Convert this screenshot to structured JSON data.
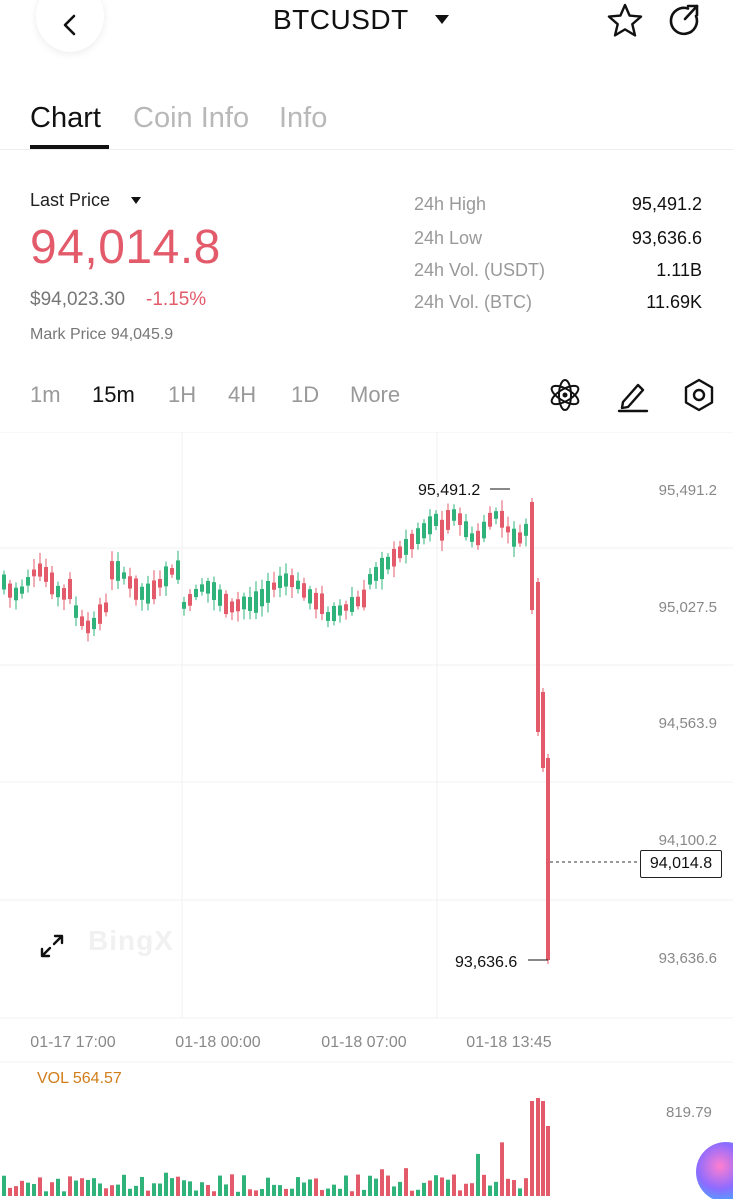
{
  "header": {
    "pair": "BTCUSDT",
    "icons": {
      "back": "back-chevron-icon",
      "caret": "caret-down-icon",
      "star": "star-icon",
      "share": "share-icon"
    }
  },
  "tabs": [
    {
      "label": "Chart",
      "active": true
    },
    {
      "label": "Coin Info",
      "active": false
    },
    {
      "label": "Info",
      "active": false
    }
  ],
  "price": {
    "label": "Last Price",
    "last": "94,014.8",
    "usd": "$94,023.30",
    "change": "-1.15%",
    "mark": "Mark Price 94,045.9"
  },
  "stats": [
    {
      "label": "24h High",
      "value": "95,491.2"
    },
    {
      "label": "24h Low",
      "value": "93,636.6"
    },
    {
      "label": "24h Vol. (USDT)",
      "value": "1.11B"
    },
    {
      "label": "24h Vol. (BTC)",
      "value": "11.69K"
    }
  ],
  "intervals": [
    {
      "label": "1m",
      "active": false
    },
    {
      "label": "15m",
      "active": true
    },
    {
      "label": "1H",
      "active": false
    },
    {
      "label": "4H",
      "active": false
    },
    {
      "label": "1D",
      "active": false
    },
    {
      "label": "More",
      "active": false
    }
  ],
  "tools": [
    "indicator-atom-icon",
    "draw-pencil-icon",
    "settings-hexagon-icon"
  ],
  "colors": {
    "up": "#2fb37a",
    "down": "#e35a6a",
    "accent_vol": "#d07d1a"
  },
  "chart_data": {
    "type": "candlestick",
    "y_axis_ticks": [
      "95,491.2",
      "95,027.5",
      "94,563.9",
      "94,100.2",
      "93,636.6"
    ],
    "x_axis_ticks": [
      "01-17 17:00",
      "01-18 00:00",
      "01-18 07:00",
      "01-18 13:45"
    ],
    "high_marker": "95,491.2",
    "low_marker": "93,636.6",
    "current_price": "94,014.8",
    "watermark": "BingX",
    "volume_label": "VOL 564.57",
    "volume_max": "819.79"
  }
}
